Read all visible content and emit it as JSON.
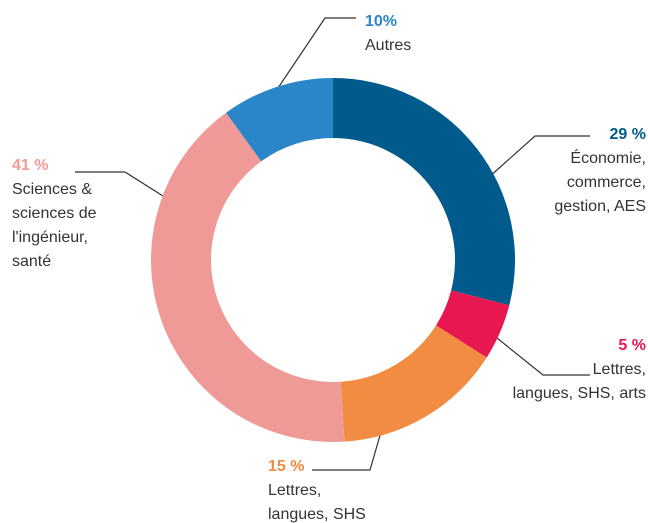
{
  "chart_data": {
    "type": "donut",
    "categories": [
      [
        "Économie,",
        "commerce,",
        "gestion, AES"
      ],
      [
        "Lettres,",
        "langues, SHS, arts"
      ],
      [
        "Lettres,",
        "langues, SHS"
      ],
      [
        "Sciences &",
        "sciences de",
        "l'ingénieur,",
        "santé"
      ],
      [
        "Autres"
      ]
    ],
    "values": [
      29,
      5,
      15,
      41,
      10
    ],
    "value_labels": [
      "29 %",
      "5 %",
      "15 %",
      "41 %",
      "10%"
    ],
    "colors": [
      "#005a8c",
      "#e8174f",
      "#f28c42",
      "#f09a97",
      "#2a86c8"
    ]
  }
}
